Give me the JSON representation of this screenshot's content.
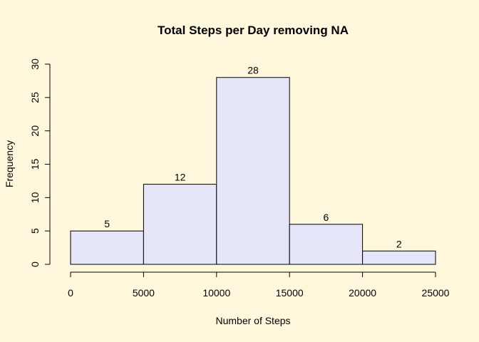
{
  "chart_data": {
    "type": "bar",
    "title": "Total Steps per Day removing NA",
    "xlabel": "Number of Steps",
    "ylabel": "Frequency",
    "bins": [
      {
        "start": 0,
        "end": 5000,
        "value": 5,
        "label": "5"
      },
      {
        "start": 5000,
        "end": 10000,
        "value": 12,
        "label": "12"
      },
      {
        "start": 10000,
        "end": 15000,
        "value": 28,
        "label": "28"
      },
      {
        "start": 15000,
        "end": 20000,
        "value": 6,
        "label": "6"
      },
      {
        "start": 20000,
        "end": 25000,
        "value": 2,
        "label": "2"
      }
    ],
    "xlim": [
      0,
      25000
    ],
    "ylim": [
      0,
      30
    ],
    "xticks": [
      0,
      5000,
      10000,
      15000,
      20000,
      25000
    ],
    "yticks": [
      0,
      5,
      10,
      15,
      20,
      25,
      30
    ],
    "grid": false,
    "colors": {
      "background": "#fff8dc",
      "bar_fill": "#e6e6fa",
      "bar_stroke": "#000000"
    }
  }
}
